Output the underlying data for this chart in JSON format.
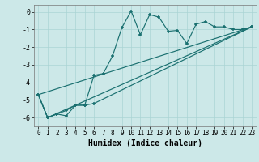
{
  "xlabel": "Humidex (Indice chaleur)",
  "bg_color": "#cce8e8",
  "line_color": "#1a7070",
  "grid_color": "#aad4d4",
  "xlim": [
    -0.5,
    23.5
  ],
  "ylim": [
    -6.5,
    0.4
  ],
  "yticks": [
    0,
    -1,
    -2,
    -3,
    -4,
    -5,
    -6
  ],
  "xticks": [
    0,
    1,
    2,
    3,
    4,
    5,
    6,
    7,
    8,
    9,
    10,
    11,
    12,
    13,
    14,
    15,
    16,
    17,
    18,
    19,
    20,
    21,
    22,
    23
  ],
  "series1_x": [
    0,
    1,
    2,
    3,
    4,
    5,
    6,
    7,
    8,
    9,
    10,
    11,
    12,
    13,
    14,
    15,
    16,
    17,
    18,
    19,
    20,
    21,
    22,
    23
  ],
  "series1_y": [
    -4.7,
    -6.0,
    -5.8,
    -5.9,
    -5.3,
    -5.3,
    -3.6,
    -3.5,
    -2.5,
    -0.9,
    0.05,
    -1.3,
    -0.15,
    -0.3,
    -1.1,
    -1.05,
    -1.8,
    -0.7,
    -0.55,
    -0.85,
    -0.85,
    -1.0,
    -1.0,
    -0.85
  ],
  "series2_x": [
    0,
    1,
    2,
    3,
    4,
    5,
    6,
    23
  ],
  "series2_y": [
    -4.7,
    -6.0,
    -5.8,
    -5.6,
    -5.3,
    -5.3,
    -5.2,
    -0.85
  ],
  "series3_x": [
    0,
    23
  ],
  "series3_y": [
    -4.7,
    -0.85
  ],
  "series4_x": [
    0,
    1,
    23
  ],
  "series4_y": [
    -4.7,
    -6.0,
    -0.85
  ]
}
